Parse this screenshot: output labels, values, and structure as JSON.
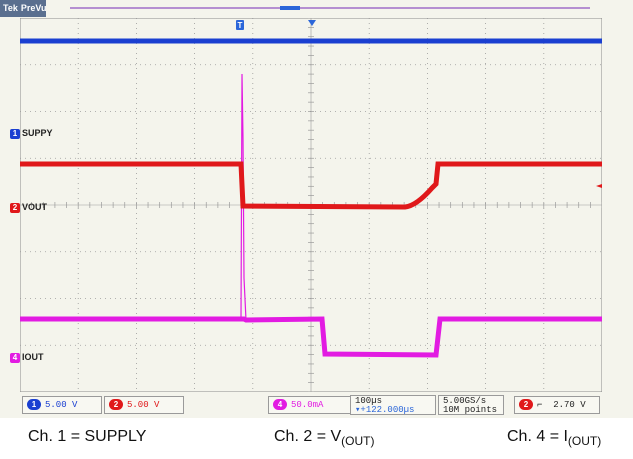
{
  "scope": {
    "brand": "Tek",
    "mode": "PreVu",
    "trigger_marker": "T",
    "ch1_marker": "1",
    "ch2_marker": "2",
    "ch4_marker": "4"
  },
  "channels": [
    {
      "id": "1",
      "label": "SUPPY",
      "scale": "5.00 V",
      "color": "#1a3fd1"
    },
    {
      "id": "2",
      "label": "VOUT",
      "scale": "5.00 V",
      "color": "#e0181a"
    },
    {
      "id": "4",
      "label": "IOUT",
      "scale": "50.0mA",
      "color": "#e21be2"
    }
  ],
  "timebase": {
    "scale": "100µs",
    "delay": "▾+122.000µs"
  },
  "acquisition": {
    "rate": "5.00GS/s",
    "points": "10M points"
  },
  "trigger": {
    "source": "2",
    "slope": "⌐",
    "level": "2.70 V"
  },
  "captions": {
    "ch1": "Ch. 1 = SUPPLY",
    "ch2_prefix": "Ch. 2 = V",
    "ch2_sub": "(OUT)",
    "ch4_prefix": "Ch. 4 = I",
    "ch4_sub": "(OUT)"
  },
  "colors": {
    "grid": "#9a9a9a",
    "screen": "#f4f4ec"
  }
}
